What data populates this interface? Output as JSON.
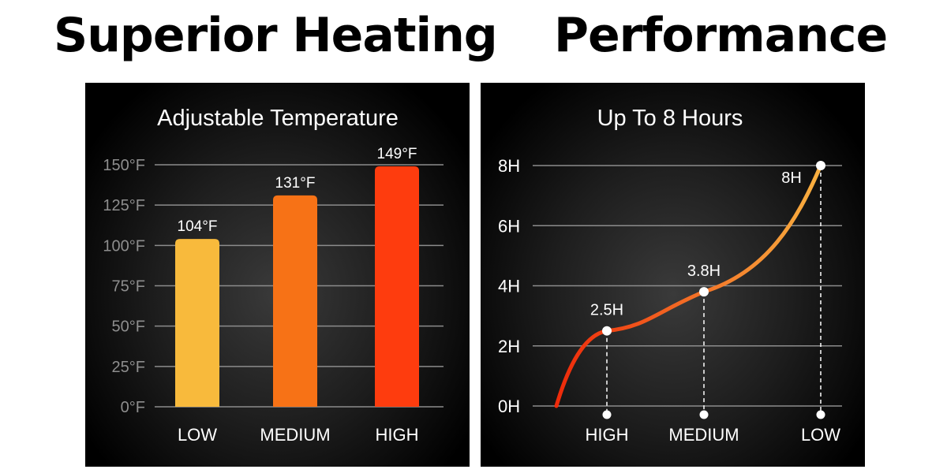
{
  "headline": {
    "left": "Superior Heating",
    "right": "Performance"
  },
  "colors": {
    "low": "#F8BA3C",
    "medium": "#F77216",
    "high": "#FE3C0E",
    "curve_start": "#EE2A0A",
    "curve_end": "#F8B040"
  },
  "chart_data": [
    {
      "type": "bar",
      "title": "Adjustable Temperature",
      "categories": [
        "LOW",
        "MEDIUM",
        "HIGH"
      ],
      "values": [
        104,
        131,
        149
      ],
      "value_labels": [
        "104°F",
        "131°F",
        "149°F"
      ],
      "yticks": [
        0,
        25,
        50,
        75,
        100,
        125,
        150
      ],
      "ytick_labels": [
        "0°F",
        "25°F",
        "50°F",
        "75°F",
        "100°F",
        "125°F",
        "150°F"
      ],
      "ylim": [
        0,
        150
      ],
      "grid": true
    },
    {
      "type": "line",
      "title": "Up To 8 Hours",
      "categories": [
        "HIGH",
        "MEDIUM",
        "LOW"
      ],
      "values": [
        2.5,
        3.8,
        8
      ],
      "value_labels": [
        "2.5H",
        "3.8H",
        "8H"
      ],
      "yticks": [
        0,
        2,
        4,
        6,
        8
      ],
      "ytick_labels": [
        "0H",
        "2H",
        "4H",
        "6H",
        "8H"
      ],
      "ylim": [
        0,
        8
      ],
      "grid": true
    }
  ]
}
